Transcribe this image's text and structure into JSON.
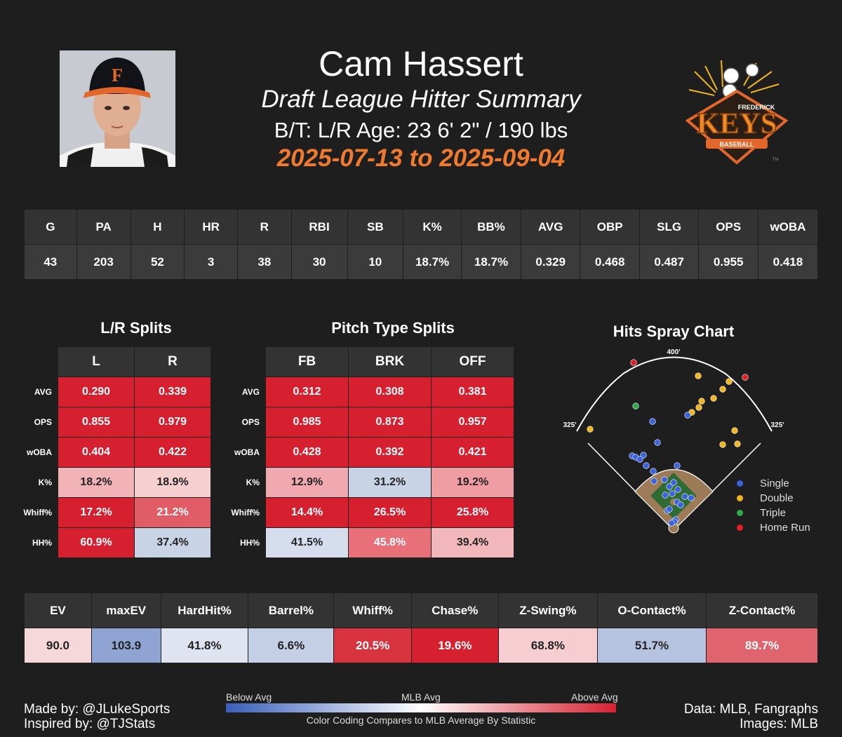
{
  "header": {
    "player_name": "Cam Hassert",
    "subtitle": "Draft League Hitter Summary",
    "bio": "B/T: L/R  Age: 23   6' 2\" / 190 lbs",
    "date_range": "2025-07-13 to 2025-09-04",
    "team_logo": {
      "top": "FREDERICK",
      "main": "KEYS",
      "bottom": "BASEBALL",
      "tm": "TM"
    }
  },
  "season_stats": {
    "headers": [
      "G",
      "PA",
      "H",
      "HR",
      "R",
      "RBI",
      "SB",
      "K%",
      "BB%",
      "AVG",
      "OBP",
      "SLG",
      "OPS",
      "wOBA"
    ],
    "values": [
      "43",
      "203",
      "52",
      "3",
      "38",
      "30",
      "10",
      "18.7%",
      "18.7%",
      "0.329",
      "0.468",
      "0.487",
      "0.955",
      "0.418"
    ]
  },
  "lr_splits": {
    "title": "L/R Splits",
    "columns": [
      "L",
      "R"
    ],
    "rows": [
      {
        "label": "AVG",
        "cells": [
          {
            "v": "0.290",
            "c": "#d62030"
          },
          {
            "v": "0.339",
            "c": "#d62030"
          }
        ]
      },
      {
        "label": "OPS",
        "cells": [
          {
            "v": "0.855",
            "c": "#d62030"
          },
          {
            "v": "0.979",
            "c": "#d62030"
          }
        ]
      },
      {
        "label": "wOBA",
        "cells": [
          {
            "v": "0.404",
            "c": "#d62030"
          },
          {
            "v": "0.422",
            "c": "#d62030"
          }
        ]
      },
      {
        "label": "K%",
        "cells": [
          {
            "v": "18.2%",
            "c": "#f2b3b7"
          },
          {
            "v": "18.9%",
            "c": "#f6cfd1"
          }
        ]
      },
      {
        "label": "Whiff%",
        "cells": [
          {
            "v": "17.2%",
            "c": "#d62030"
          },
          {
            "v": "21.2%",
            "c": "#e05c66"
          }
        ]
      },
      {
        "label": "HH%",
        "cells": [
          {
            "v": "60.9%",
            "c": "#d62030"
          },
          {
            "v": "37.4%",
            "c": "#c9d3e6"
          }
        ]
      }
    ]
  },
  "pitch_splits": {
    "title": "Pitch Type Splits",
    "columns": [
      "FB",
      "BRK",
      "OFF"
    ],
    "rows": [
      {
        "label": "AVG",
        "cells": [
          {
            "v": "0.312",
            "c": "#d62030"
          },
          {
            "v": "0.308",
            "c": "#d62030"
          },
          {
            "v": "0.381",
            "c": "#d62030"
          }
        ]
      },
      {
        "label": "OPS",
        "cells": [
          {
            "v": "0.985",
            "c": "#d62030"
          },
          {
            "v": "0.873",
            "c": "#d62030"
          },
          {
            "v": "0.957",
            "c": "#d62030"
          }
        ]
      },
      {
        "label": "wOBA",
        "cells": [
          {
            "v": "0.428",
            "c": "#d62030"
          },
          {
            "v": "0.392",
            "c": "#d62030"
          },
          {
            "v": "0.421",
            "c": "#d62030"
          }
        ]
      },
      {
        "label": "K%",
        "cells": [
          {
            "v": "12.9%",
            "c": "#f0a9ae"
          },
          {
            "v": "31.2%",
            "c": "#c9d3e6"
          },
          {
            "v": "19.2%",
            "c": "#ef9ca2"
          }
        ]
      },
      {
        "label": "Whiff%",
        "cells": [
          {
            "v": "14.4%",
            "c": "#d62030"
          },
          {
            "v": "26.5%",
            "c": "#d62030"
          },
          {
            "v": "25.8%",
            "c": "#d62030"
          }
        ]
      },
      {
        "label": "HH%",
        "cells": [
          {
            "v": "41.5%",
            "c": "#d6dded"
          },
          {
            "v": "45.8%",
            "c": "#e87079"
          },
          {
            "v": "39.4%",
            "c": "#f2b7bb"
          }
        ]
      }
    ]
  },
  "spray_chart": {
    "title": "Hits Spray Chart",
    "center_label": "400'",
    "left_label": "325'",
    "right_label": "325'",
    "legend": [
      {
        "name": "Single",
        "color": "#3a63e0"
      },
      {
        "name": "Double",
        "color": "#f2b51e"
      },
      {
        "name": "Triple",
        "color": "#2eaa4a"
      },
      {
        "name": "Home Run",
        "color": "#e01f25"
      }
    ]
  },
  "advanced_stats": {
    "headers": [
      "EV",
      "maxEV",
      "HardHit%",
      "Barrel%",
      "Whiff%",
      "Chase%",
      "Z-Swing%",
      "O-Contact%",
      "Z-Contact%"
    ],
    "cells": [
      {
        "v": "90.0",
        "c": "#f6d8da"
      },
      {
        "v": "103.9",
        "c": "#8fa4d2"
      },
      {
        "v": "41.8%",
        "c": "#dfe4f0"
      },
      {
        "v": "6.6%",
        "c": "#c4cee5"
      },
      {
        "v": "20.5%",
        "c": "#d83440"
      },
      {
        "v": "19.6%",
        "c": "#d62030"
      },
      {
        "v": "68.8%",
        "c": "#f6cdd0"
      },
      {
        "v": "51.7%",
        "c": "#b6c3e0"
      },
      {
        "v": "89.7%",
        "c": "#e0646d"
      }
    ]
  },
  "color_legend": {
    "below": "Below Avg",
    "mid": "MLB Avg",
    "above": "Above Avg",
    "caption": "Color Coding Compares to MLB Average By Statistic"
  },
  "footer": {
    "made_by": "Made by: @JLukeSports",
    "inspired_by": "Inspired by: @TJStats",
    "data": "Data: MLB, Fangraphs",
    "images": "Images: MLB"
  }
}
